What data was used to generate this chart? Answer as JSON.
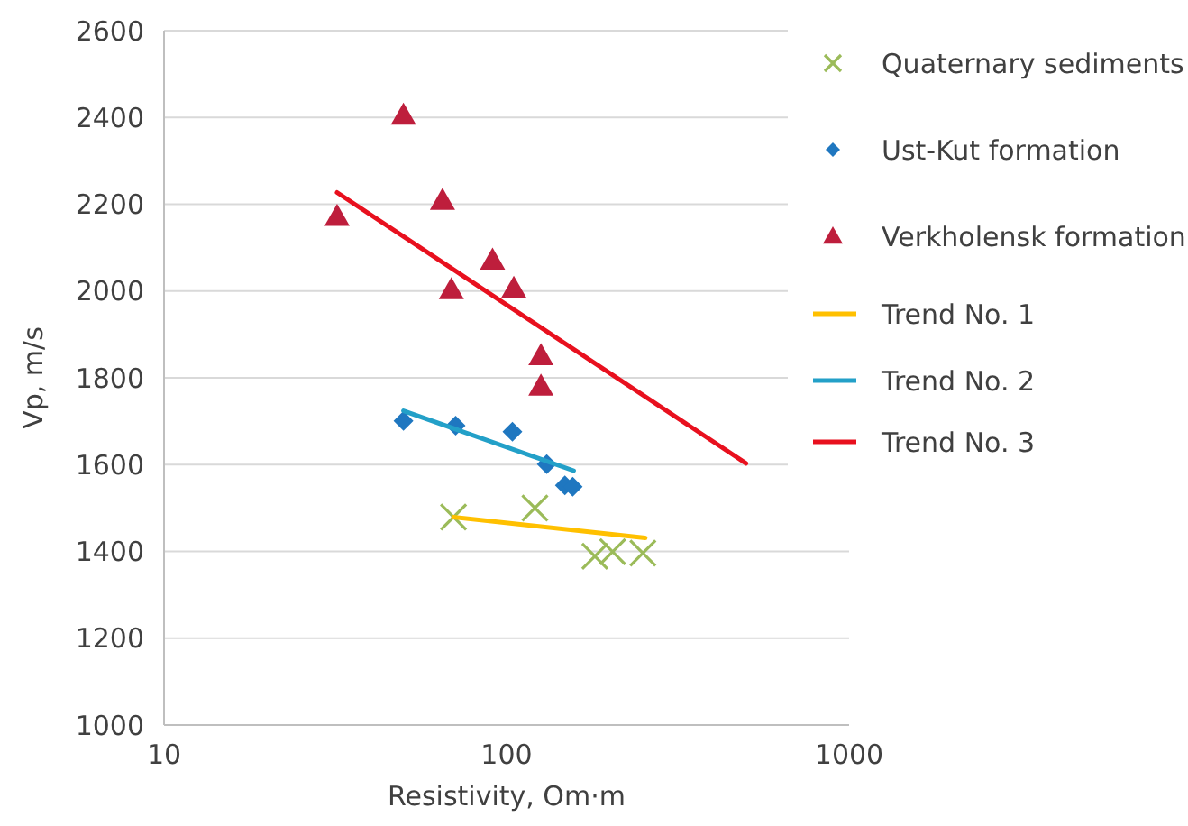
{
  "chart_data": {
    "type": "scatter",
    "xlabel": "Resistivity, Om·m",
    "ylabel": "Vp, m/s",
    "log": "x",
    "xlim": [
      10,
      1000
    ],
    "xticks": [
      10,
      100,
      1000
    ],
    "ylim": [
      1000,
      2600
    ],
    "yticks": [
      1000,
      1200,
      1400,
      1600,
      1800,
      2000,
      2200,
      2400,
      2600
    ],
    "grid": "y",
    "legend": "right",
    "series": [
      {
        "name": "Quaternary sediments",
        "marker": "cross",
        "color": "#9bbb59",
        "x": [
          70,
          121,
          181,
          204,
          250
        ],
        "values": [
          1479,
          1500,
          1389,
          1399,
          1396
        ]
      },
      {
        "name": "Ust-Kut formation",
        "marker": "diamond",
        "color": "#1f77c0",
        "x": [
          50,
          71,
          104,
          131,
          148,
          156
        ],
        "values": [
          1701,
          1690,
          1676,
          1601,
          1552,
          1549
        ]
      },
      {
        "name": "Verkholensk formation",
        "marker": "triangle",
        "color": "#be1e3c",
        "x": [
          32,
          50,
          65,
          69,
          91,
          105,
          126,
          126
        ],
        "values": [
          2172,
          2405,
          2209,
          2003,
          2071,
          2006,
          1851,
          1781
        ]
      },
      {
        "name": "Trend No. 1",
        "type": "line",
        "color": "#ffc000",
        "x": [
          70,
          254
        ],
        "values": [
          1479,
          1431
        ]
      },
      {
        "name": "Trend No. 2",
        "type": "line",
        "color": "#23a0c8",
        "x": [
          50,
          157
        ],
        "values": [
          1724,
          1586
        ]
      },
      {
        "name": "Trend No. 3",
        "type": "line",
        "color": "#e8101e",
        "x": [
          32,
          500
        ],
        "values": [
          2227,
          1603
        ]
      }
    ]
  }
}
